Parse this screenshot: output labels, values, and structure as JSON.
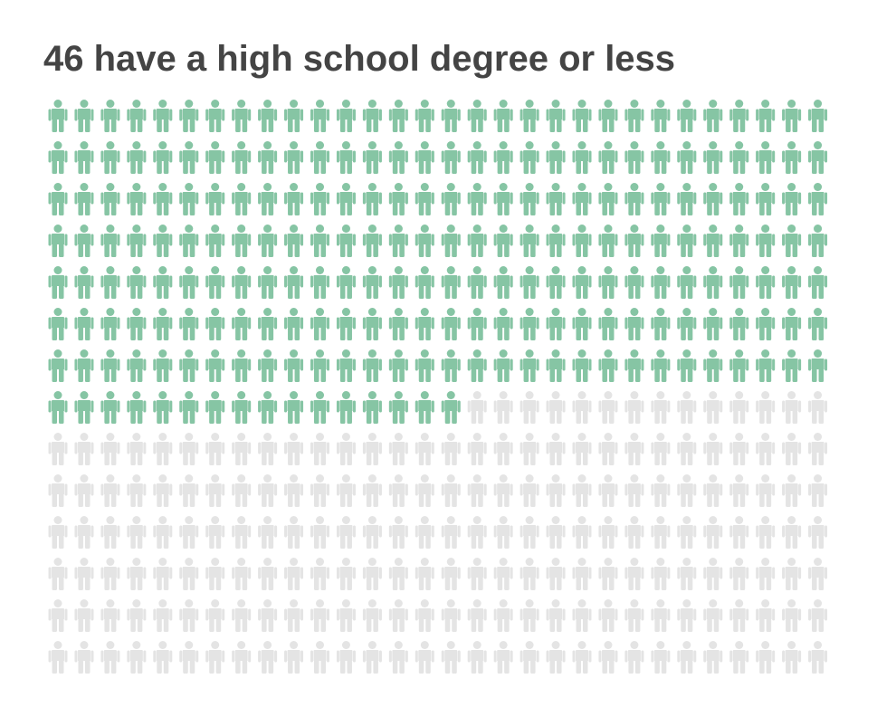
{
  "chart_data": {
    "type": "pictogram",
    "title": "46 have a high school degree or less",
    "value": 226.2,
    "total": 420,
    "color": "#86c5a4",
    "empty_color": "#e4e4e4"
  }
}
